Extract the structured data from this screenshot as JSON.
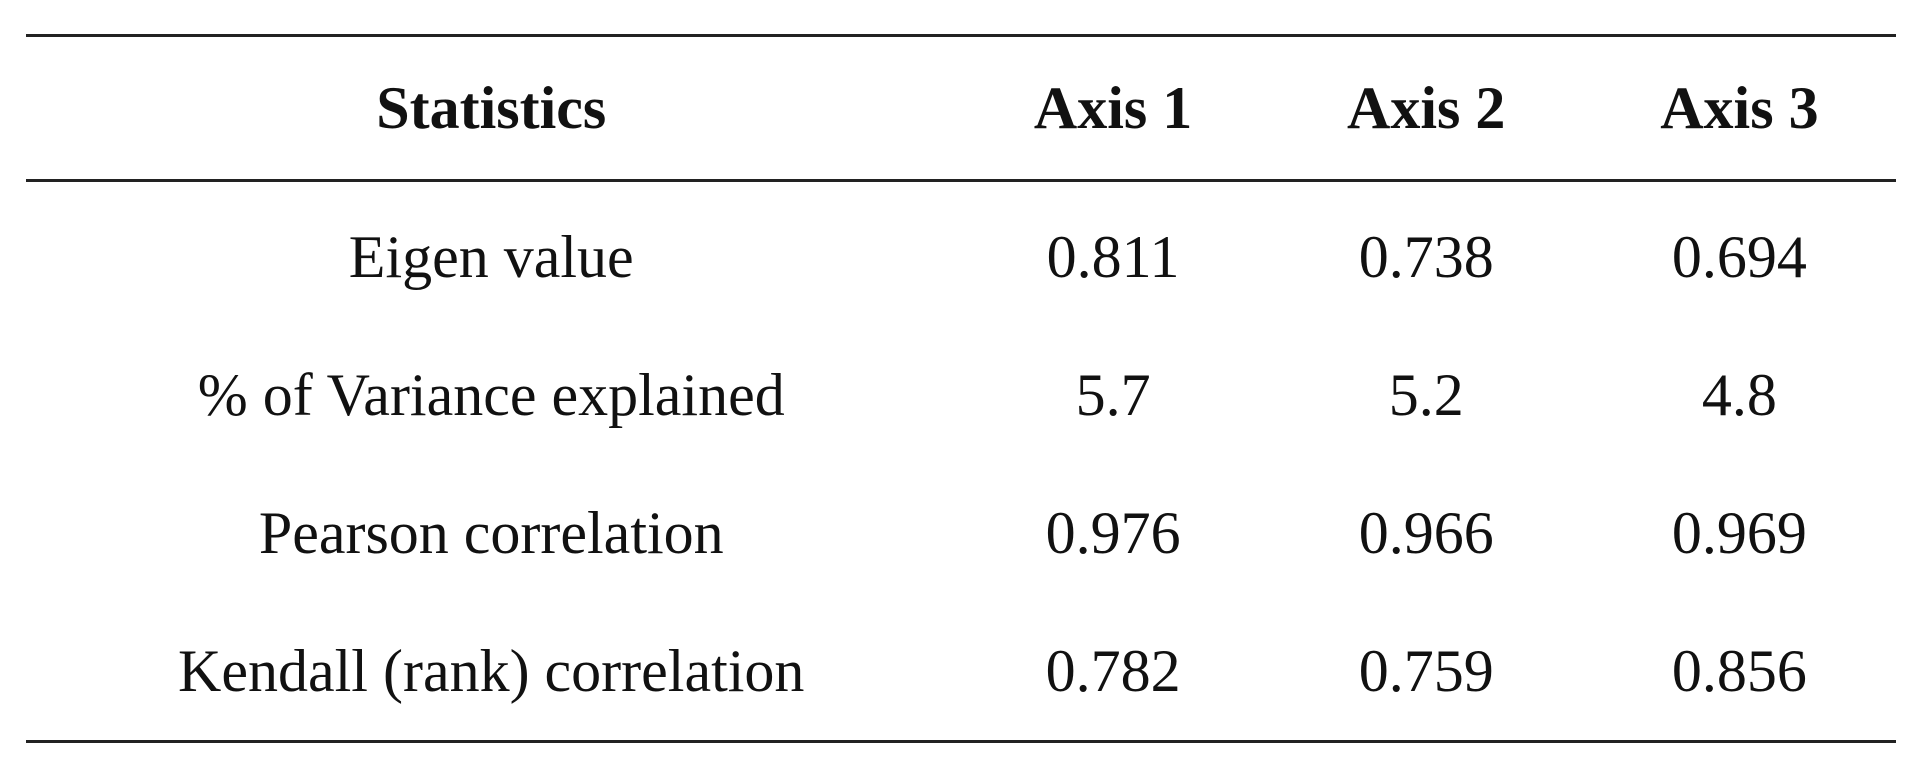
{
  "table": {
    "headers": [
      "Statistics",
      "Axis 1",
      "Axis 2",
      "Axis 3"
    ],
    "rows": [
      [
        "Eigen value",
        "0.811",
        "0.738",
        "0.694"
      ],
      [
        "% of Variance explained",
        "5.7",
        "5.2",
        "4.8"
      ],
      [
        "Pearson correlation",
        "0.976",
        "0.966",
        "0.969"
      ],
      [
        "Kendall (rank) correlation",
        "0.782",
        "0.759",
        "0.856"
      ]
    ]
  }
}
